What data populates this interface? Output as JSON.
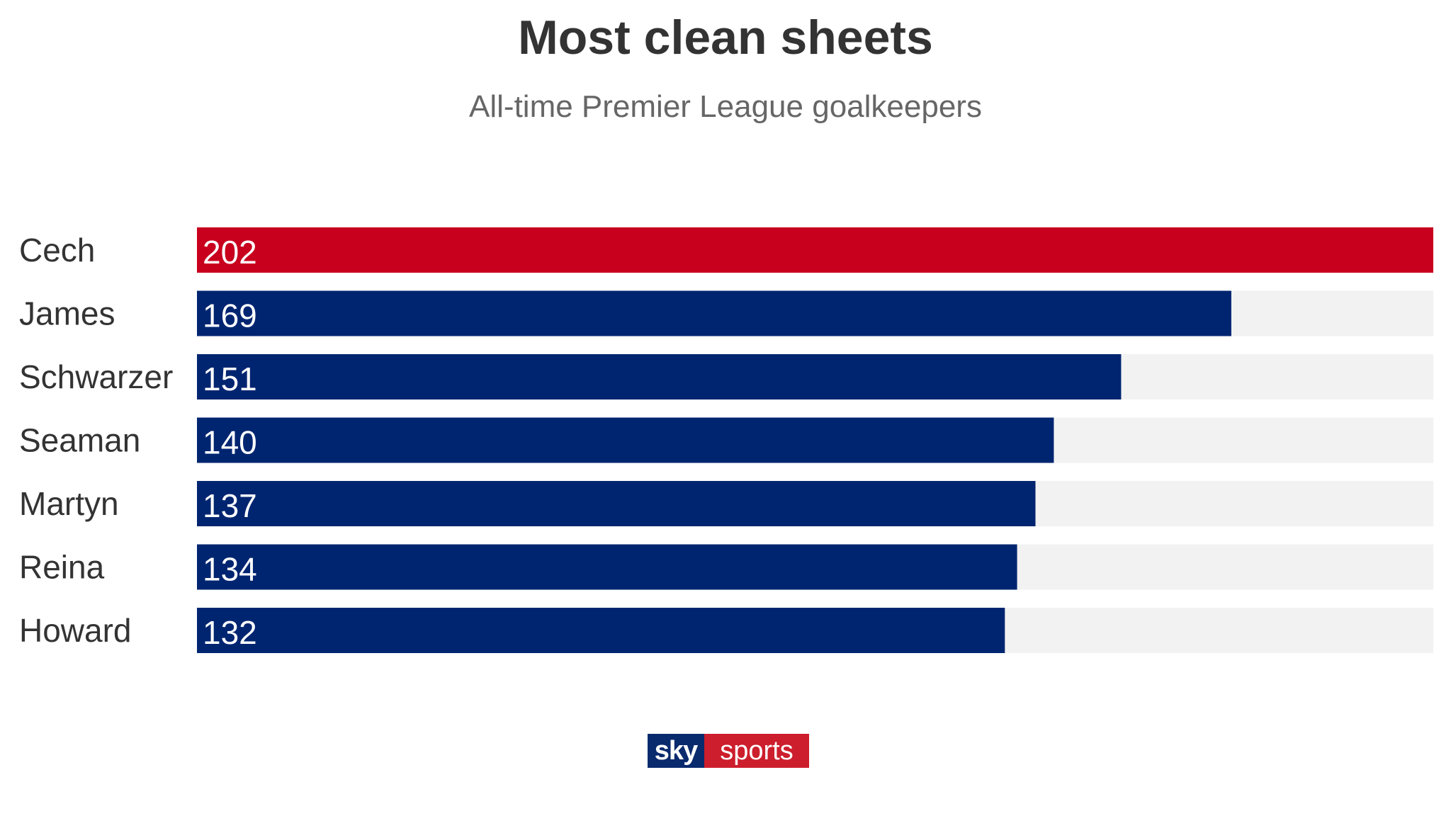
{
  "chart_data": {
    "type": "bar",
    "orientation": "horizontal",
    "title": "Most clean sheets",
    "subtitle": "All-time Premier League goalkeepers",
    "categories": [
      "Cech",
      "James",
      "Schwarzer",
      "Seaman",
      "Martyn",
      "Reina",
      "Howard"
    ],
    "values": [
      202,
      169,
      151,
      140,
      137,
      134,
      132
    ],
    "xlim": [
      0,
      202
    ],
    "grid": false,
    "legend": "none",
    "colors": {
      "highlight": "#c8001e",
      "bar": "#002570",
      "track": "#f2f2f2",
      "label": "#333333",
      "value_text": "#ffffff"
    }
  },
  "branding": {
    "logo_left": "sky",
    "logo_right": "sports"
  }
}
